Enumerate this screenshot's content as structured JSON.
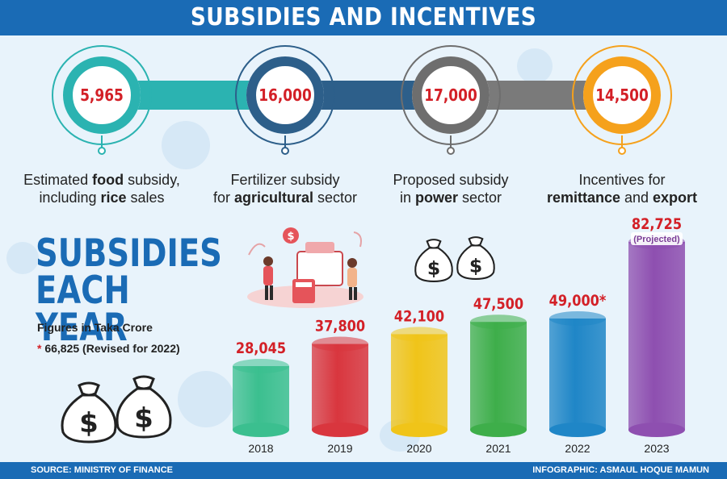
{
  "header": {
    "title": "SUBSIDIES AND INCENTIVES"
  },
  "highlights": [
    {
      "value": "5,965",
      "line1_pre": "Estimated ",
      "line1_bold": "food",
      "line1_post": " subsidy,",
      "line2_pre": "including ",
      "line2_bold": "rice",
      "line2_post": " sales",
      "color": "#2bb3b1"
    },
    {
      "value": "16,000",
      "line1_pre": "Fertilizer subsidy",
      "line1_bold": "",
      "line1_post": "",
      "line2_pre": "for ",
      "line2_bold": "agricultural",
      "line2_post": " sector",
      "color": "#2d5f8a"
    },
    {
      "value": "17,000",
      "line1_pre": "Proposed subsidy",
      "line1_bold": "",
      "line1_post": "",
      "line2_pre": "in ",
      "line2_bold": "power",
      "line2_post": " sector",
      "color": "#6e6e6e"
    },
    {
      "value": "14,500",
      "line1_pre": "Incentives for",
      "line1_bold": "",
      "line1_post": "",
      "line2_pre": "",
      "line2_bold": "remittance",
      "line2_post": " and ",
      "line2_bold2": "export",
      "color": "#f5a11c"
    }
  ],
  "section": {
    "title_line1": "SUBSIDIES",
    "title_line2": "EACH YEAR",
    "note_units": "Figures in Taka Crore",
    "note_asterisk": "*",
    "note_revised": " 66,825 (Revised for 2022)"
  },
  "chart_data": {
    "type": "bar",
    "title": "SUBSIDIES EACH YEAR",
    "ylabel": "Figures in Taka Crore",
    "categories": [
      "2018",
      "2019",
      "2020",
      "2021",
      "2022",
      "2023"
    ],
    "values": [
      28045,
      37800,
      42100,
      47500,
      49000,
      82725
    ],
    "value_labels": [
      "28,045",
      "37,800",
      "42,100",
      "47,500",
      "49,000*",
      "82,725"
    ],
    "annotations": [
      {
        "category": "2023",
        "text": "(Projected)"
      }
    ],
    "colors": [
      "#3bbf8f",
      "#d9363e",
      "#f0c419",
      "#3eae4a",
      "#1f86c7",
      "#8e4fb0"
    ]
  },
  "footer": {
    "source": "SOURCE: MINISTRY OF FINANCE",
    "credit": "INFOGRAPHIC: ASMAUL HOQUE MAMUN"
  }
}
